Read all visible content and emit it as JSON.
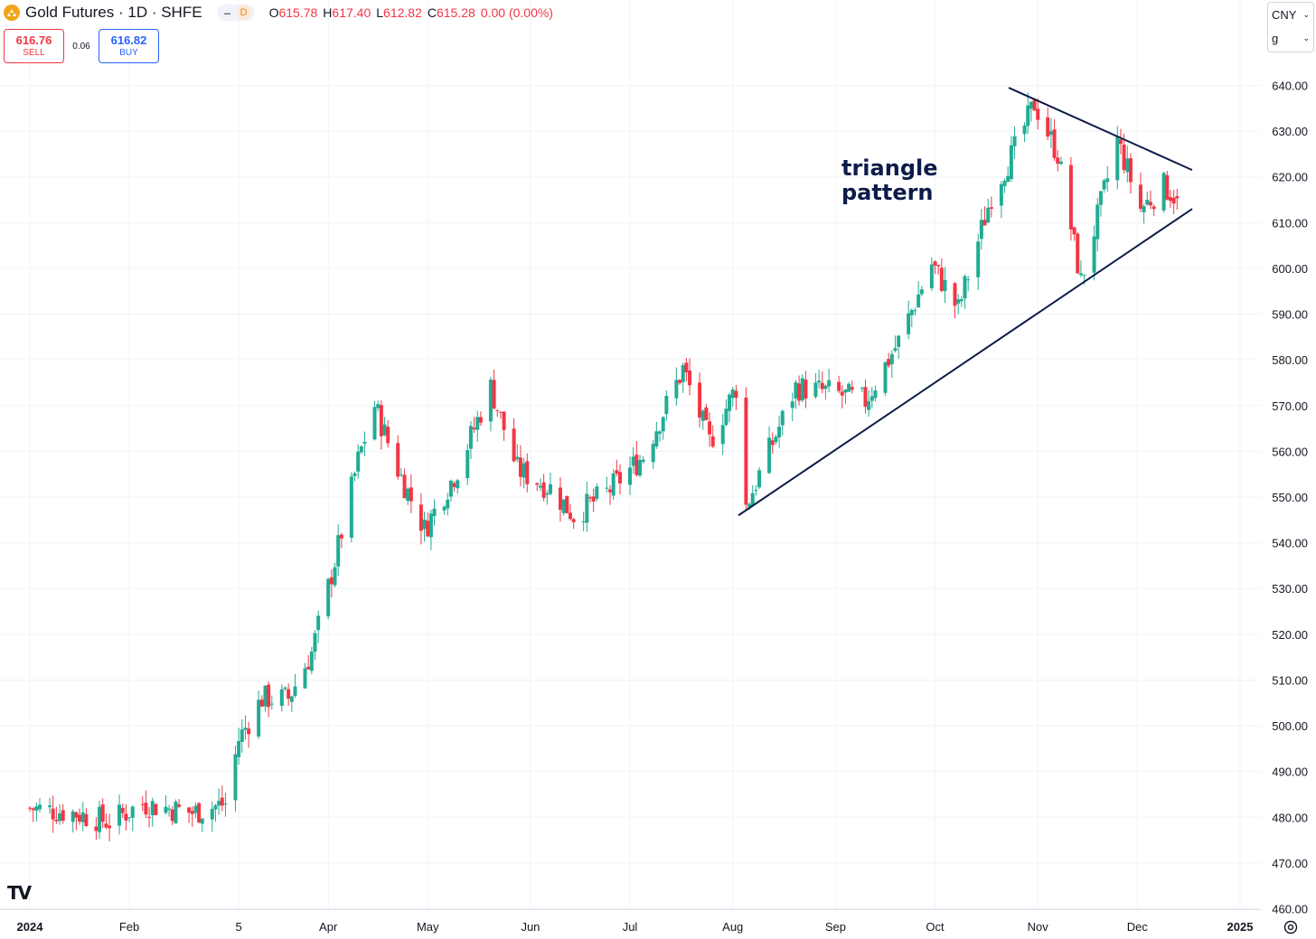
{
  "header": {
    "symbol_title": "Gold Futures · 1D · SHFE",
    "pill_minus": "–",
    "pill_letter": "D",
    "ohlc": [
      {
        "label": "O",
        "value": "615.78"
      },
      {
        "label": "H",
        "value": "617.40"
      },
      {
        "label": "L",
        "value": "612.82"
      },
      {
        "label": "C",
        "value": "615.28"
      },
      {
        "label": "",
        "value": "0.00 (0.00%)"
      }
    ]
  },
  "trade": {
    "sell_price": "616.76",
    "sell_label": "SELL",
    "spread": "0.06",
    "buy_price": "616.82",
    "buy_label": "BUY"
  },
  "currency": {
    "currency": "CNY",
    "unit": "g"
  },
  "logo_text": "TV",
  "colors": {
    "up": "#22ab94",
    "down": "#f23645",
    "line": "#0d1b4a",
    "grid": "#f0f3fa"
  },
  "chart_data": {
    "type": "candlestick",
    "title": "Gold Futures · 1D · SHFE",
    "currency": "CNY",
    "ylim": [
      460,
      640
    ],
    "y_ticks": [
      460,
      470,
      480,
      490,
      500,
      510,
      520,
      530,
      540,
      550,
      560,
      570,
      580,
      590,
      600,
      610,
      620,
      630,
      640
    ],
    "y_tick_labels": [
      "460.00",
      "470.00",
      "480.00",
      "490.00",
      "500.00",
      "510.00",
      "520.00",
      "530.00",
      "540.00",
      "550.00",
      "560.00",
      "570.00",
      "580.00",
      "590.00",
      "600.00",
      "610.00",
      "620.00",
      "630.00",
      "640.00"
    ],
    "x_range": [
      "2023-12-24",
      "2025-01-01"
    ],
    "x_ticks": [
      {
        "label": "2024",
        "date": "2024-01-02"
      },
      {
        "label": "Feb",
        "date": "2024-02-01"
      },
      {
        "label": "5",
        "date": "2024-03-05"
      },
      {
        "label": "Apr",
        "date": "2024-04-01"
      },
      {
        "label": "May",
        "date": "2024-05-01"
      },
      {
        "label": "Jun",
        "date": "2024-06-01"
      },
      {
        "label": "Jul",
        "date": "2024-07-01"
      },
      {
        "label": "Aug",
        "date": "2024-08-01"
      },
      {
        "label": "Sep",
        "date": "2024-09-01"
      },
      {
        "label": "Oct",
        "date": "2024-10-01"
      },
      {
        "label": "Nov",
        "date": "2024-11-01"
      },
      {
        "label": "Dec",
        "date": "2024-12-01"
      },
      {
        "label": "2025",
        "date": "2025-01-01"
      }
    ],
    "last_close": 615.28,
    "annotation": {
      "text": [
        "triangle",
        "pattern"
      ]
    },
    "closes": [
      {
        "date": "2024-01-02",
        "close": 482
      },
      {
        "date": "2024-01-15",
        "close": 481
      },
      {
        "date": "2024-01-26",
        "close": 479
      },
      {
        "date": "2024-02-05",
        "close": 483
      },
      {
        "date": "2024-02-20",
        "close": 481
      },
      {
        "date": "2024-03-01",
        "close": 483
      },
      {
        "date": "2024-03-05",
        "close": 497
      },
      {
        "date": "2024-03-12",
        "close": 506
      },
      {
        "date": "2024-03-20",
        "close": 506
      },
      {
        "date": "2024-03-27",
        "close": 516
      },
      {
        "date": "2024-04-03",
        "close": 536
      },
      {
        "date": "2024-04-10",
        "close": 558
      },
      {
        "date": "2024-04-15",
        "close": 570
      },
      {
        "date": "2024-04-22",
        "close": 556
      },
      {
        "date": "2024-04-30",
        "close": 543
      },
      {
        "date": "2024-05-10",
        "close": 556
      },
      {
        "date": "2024-05-20",
        "close": 574
      },
      {
        "date": "2024-05-28",
        "close": 556
      },
      {
        "date": "2024-06-07",
        "close": 552
      },
      {
        "date": "2024-06-14",
        "close": 546
      },
      {
        "date": "2024-06-24",
        "close": 551
      },
      {
        "date": "2024-07-05",
        "close": 559
      },
      {
        "date": "2024-07-17",
        "close": 578
      },
      {
        "date": "2024-07-25",
        "close": 562
      },
      {
        "date": "2024-08-02",
        "close": 574
      },
      {
        "date": "2024-08-05",
        "close": 548
      },
      {
        "date": "2024-08-20",
        "close": 574
      },
      {
        "date": "2024-08-30",
        "close": 573
      },
      {
        "date": "2024-09-10",
        "close": 571
      },
      {
        "date": "2024-09-20",
        "close": 584
      },
      {
        "date": "2024-09-30",
        "close": 601
      },
      {
        "date": "2024-10-08",
        "close": 591
      },
      {
        "date": "2024-10-18",
        "close": 616
      },
      {
        "date": "2024-10-25",
        "close": 626
      },
      {
        "date": "2024-10-31",
        "close": 636
      },
      {
        "date": "2024-11-07",
        "close": 625
      },
      {
        "date": "2024-11-14",
        "close": 597
      },
      {
        "date": "2024-11-20",
        "close": 614
      },
      {
        "date": "2024-11-25",
        "close": 628
      },
      {
        "date": "2024-12-02",
        "close": 613
      },
      {
        "date": "2024-12-09",
        "close": 618
      },
      {
        "date": "2024-12-13",
        "close": 615.28
      }
    ]
  }
}
